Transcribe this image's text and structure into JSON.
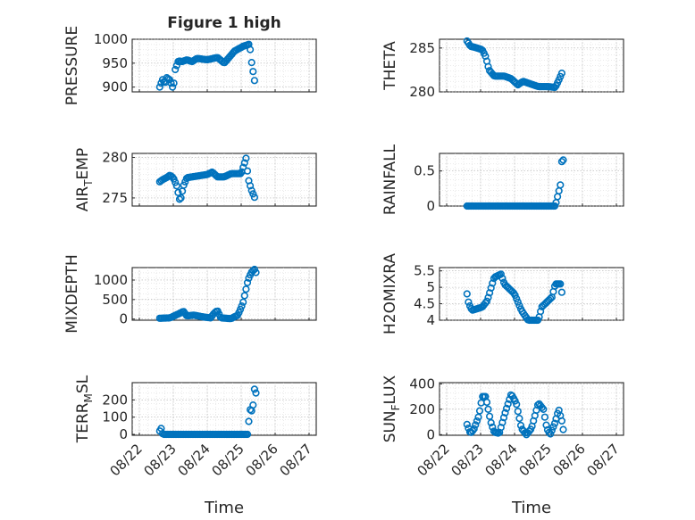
{
  "figure": {
    "title": "Figure 1 high",
    "marker_color": "#0072bd",
    "xlabel": "Time",
    "date_ticks": [
      "08/22",
      "08/23",
      "08/24",
      "08/25",
      "08/26",
      "08/27"
    ]
  },
  "chart_data": [
    {
      "type": "scatter",
      "name": "PRESSURE",
      "title": "Figure 1 high",
      "ylabel": "PRESSURE",
      "xlabel": "",
      "ylim": [
        890,
        1000
      ],
      "yticks": [
        "900",
        "950",
        "1000"
      ],
      "x_range": [
        "2010-08-22 12:00",
        "2010-08-26 24:00"
      ],
      "anchors": [
        [
          0.1,
          900
        ],
        [
          0.15,
          910
        ],
        [
          0.2,
          918
        ],
        [
          0.25,
          905
        ],
        [
          0.3,
          920
        ],
        [
          0.4,
          915
        ],
        [
          0.5,
          895
        ],
        [
          0.55,
          935
        ],
        [
          0.65,
          955
        ],
        [
          0.75,
          953
        ],
        [
          0.9,
          957
        ],
        [
          1.05,
          953
        ],
        [
          1.2,
          960
        ],
        [
          1.5,
          957
        ],
        [
          1.8,
          962
        ],
        [
          2.0,
          950
        ],
        [
          2.3,
          975
        ],
        [
          2.55,
          985
        ],
        [
          2.75,
          990
        ],
        [
          2.8,
          955
        ],
        [
          2.9,
          910
        ]
      ],
      "x_units": "days since 08/22 12:00"
    },
    {
      "type": "scatter",
      "name": "THETA",
      "ylabel": "THETA",
      "ylim": [
        280,
        286
      ],
      "yticks": [
        "280",
        "285"
      ],
      "anchors": [
        [
          0.1,
          285.8
        ],
        [
          0.2,
          285.2
        ],
        [
          0.4,
          285.0
        ],
        [
          0.55,
          284.8
        ],
        [
          0.65,
          284.0
        ],
        [
          0.75,
          282.5
        ],
        [
          0.9,
          281.8
        ],
        [
          1.2,
          281.8
        ],
        [
          1.4,
          281.5
        ],
        [
          1.6,
          280.8
        ],
        [
          1.75,
          281.2
        ],
        [
          1.9,
          281.0
        ],
        [
          2.2,
          280.6
        ],
        [
          2.5,
          280.6
        ],
        [
          2.7,
          280.5
        ],
        [
          2.8,
          281.3
        ],
        [
          2.9,
          282.2
        ]
      ],
      "x_units": "days since 08/22 12:00"
    },
    {
      "type": "scatter",
      "name": "AIR_TEMP",
      "ylabel": "AIR_TEMP",
      "ylim": [
        274,
        280.5
      ],
      "yticks": [
        "275",
        "280"
      ],
      "anchors": [
        [
          0.1,
          277.0
        ],
        [
          0.2,
          277.3
        ],
        [
          0.3,
          277.5
        ],
        [
          0.4,
          277.8
        ],
        [
          0.5,
          277.5
        ],
        [
          0.6,
          276.5
        ],
        [
          0.7,
          274.5
        ],
        [
          0.8,
          276.5
        ],
        [
          0.9,
          277.5
        ],
        [
          1.2,
          277.7
        ],
        [
          1.5,
          277.9
        ],
        [
          1.65,
          278.2
        ],
        [
          1.8,
          277.6
        ],
        [
          2.0,
          277.6
        ],
        [
          2.2,
          278.0
        ],
        [
          2.5,
          278.0
        ],
        [
          2.65,
          280.0
        ],
        [
          2.7,
          277.5
        ],
        [
          2.8,
          276.0
        ],
        [
          2.9,
          275.0
        ]
      ],
      "x_units": "days since 08/22 12:00"
    },
    {
      "type": "scatter",
      "name": "RAINFALL",
      "ylabel": "RAINFALL",
      "ylim": [
        0,
        0.75
      ],
      "yticks": [
        "0",
        "0.5"
      ],
      "anchors": [
        [
          0.1,
          0
        ],
        [
          2.7,
          0
        ],
        [
          2.8,
          0.2
        ],
        [
          2.85,
          0.3
        ],
        [
          2.9,
          0.7
        ],
        [
          2.93,
          0.7
        ],
        [
          2.96,
          0.3
        ]
      ],
      "x_units": "days since 08/22 12:00"
    },
    {
      "type": "scatter",
      "name": "MIXDEPTH",
      "ylabel": "MIXDEPTH",
      "ylim": [
        -30,
        1320
      ],
      "yticks": [
        "0",
        "500",
        "1000"
      ],
      "anchors": [
        [
          0.1,
          20
        ],
        [
          0.4,
          30
        ],
        [
          0.7,
          150
        ],
        [
          0.8,
          200
        ],
        [
          0.9,
          80
        ],
        [
          1.1,
          100
        ],
        [
          1.4,
          50
        ],
        [
          1.6,
          30
        ],
        [
          1.7,
          150
        ],
        [
          1.8,
          220
        ],
        [
          1.9,
          30
        ],
        [
          2.2,
          10
        ],
        [
          2.4,
          100
        ],
        [
          2.55,
          400
        ],
        [
          2.7,
          1000
        ],
        [
          2.8,
          1200
        ],
        [
          2.9,
          1280
        ],
        [
          2.95,
          1150
        ]
      ],
      "x_units": "days since 08/22 12:00"
    },
    {
      "type": "scatter",
      "name": "H2OMIXRA",
      "ylabel": "H2OMIXRA",
      "ylim": [
        4,
        5.6
      ],
      "yticks": [
        "4",
        "4.5",
        "5",
        "5.5"
      ],
      "anchors": [
        [
          0.1,
          4.8
        ],
        [
          0.15,
          4.5
        ],
        [
          0.25,
          4.3
        ],
        [
          0.55,
          4.4
        ],
        [
          0.7,
          4.6
        ],
        [
          0.9,
          5.3
        ],
        [
          1.1,
          5.4
        ],
        [
          1.2,
          5.1
        ],
        [
          1.5,
          4.8
        ],
        [
          1.7,
          4.3
        ],
        [
          1.9,
          4.0
        ],
        [
          2.2,
          4.0
        ],
        [
          2.3,
          4.4
        ],
        [
          2.6,
          4.7
        ],
        [
          2.7,
          5.1
        ],
        [
          2.85,
          5.1
        ],
        [
          2.9,
          4.8
        ]
      ],
      "x_units": "days since 08/22 12:00"
    },
    {
      "type": "scatter",
      "name": "TERR_MSL",
      "ylabel": "TERR_MSL",
      "ylim": [
        -5,
        300
      ],
      "yticks": [
        "0",
        "100",
        "200"
      ],
      "anchors": [
        [
          0.1,
          20
        ],
        [
          0.13,
          50
        ],
        [
          0.16,
          10
        ],
        [
          0.2,
          0
        ],
        [
          2.7,
          0
        ],
        [
          2.75,
          150
        ],
        [
          2.8,
          130
        ],
        [
          2.85,
          170
        ],
        [
          2.9,
          280
        ],
        [
          2.95,
          220
        ]
      ],
      "x_units": "days since 08/22 12:00"
    },
    {
      "type": "scatter",
      "name": "SUN_FLUX",
      "ylabel": "SUN_FLUX",
      "ylim": [
        -5,
        410
      ],
      "yticks": [
        "0",
        "200",
        "400"
      ],
      "anchors": [
        [
          0.1,
          80
        ],
        [
          0.2,
          10
        ],
        [
          0.3,
          40
        ],
        [
          0.45,
          150
        ],
        [
          0.55,
          300
        ],
        [
          0.65,
          300
        ],
        [
          0.8,
          100
        ],
        [
          0.9,
          20
        ],
        [
          1.05,
          10
        ],
        [
          1.2,
          150
        ],
        [
          1.4,
          320
        ],
        [
          1.55,
          250
        ],
        [
          1.7,
          50
        ],
        [
          1.85,
          0
        ],
        [
          2.0,
          50
        ],
        [
          2.2,
          250
        ],
        [
          2.35,
          200
        ],
        [
          2.45,
          50
        ],
        [
          2.55,
          0
        ],
        [
          2.7,
          100
        ],
        [
          2.8,
          200
        ],
        [
          2.9,
          100
        ],
        [
          2.95,
          10
        ]
      ],
      "x_units": "days since 08/22 12:00"
    }
  ]
}
